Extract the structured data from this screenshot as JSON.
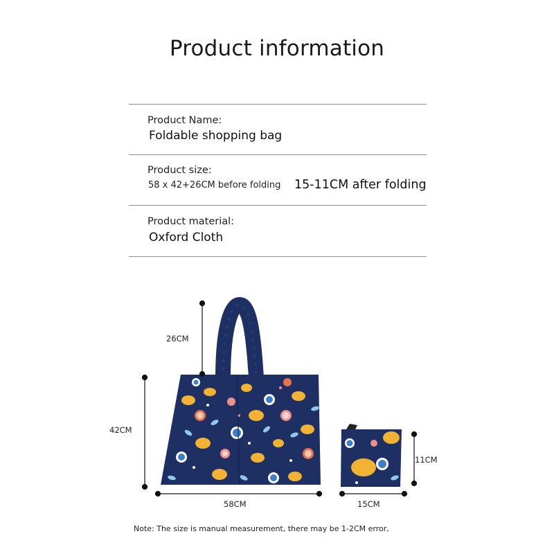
{
  "title": "Product information",
  "rows": [
    {
      "label": "Product Name:",
      "value": "Foldable shopping bag"
    },
    {
      "label": "Product size:",
      "value": "58 x 42+26CM before folding",
      "value_alt": "15-11CM after folding"
    },
    {
      "label": "Product material:",
      "value": "Oxford Cloth"
    }
  ],
  "dimensions": {
    "handle": "26CM",
    "height": "42CM",
    "width": "58CM",
    "folded_height": "11CM",
    "folded_width": "15CM"
  },
  "note": "Note: The size is manual measurement, there may be 1-2CM error,",
  "colors": {
    "bag_navy": "#1d2f63",
    "lemon": "#f2b233",
    "light_blue": "#8ec9ea",
    "blue": "#3f7fc6",
    "pink": "#ef8f8b",
    "orange": "#e9724c",
    "rule": "#8e8e8e"
  }
}
